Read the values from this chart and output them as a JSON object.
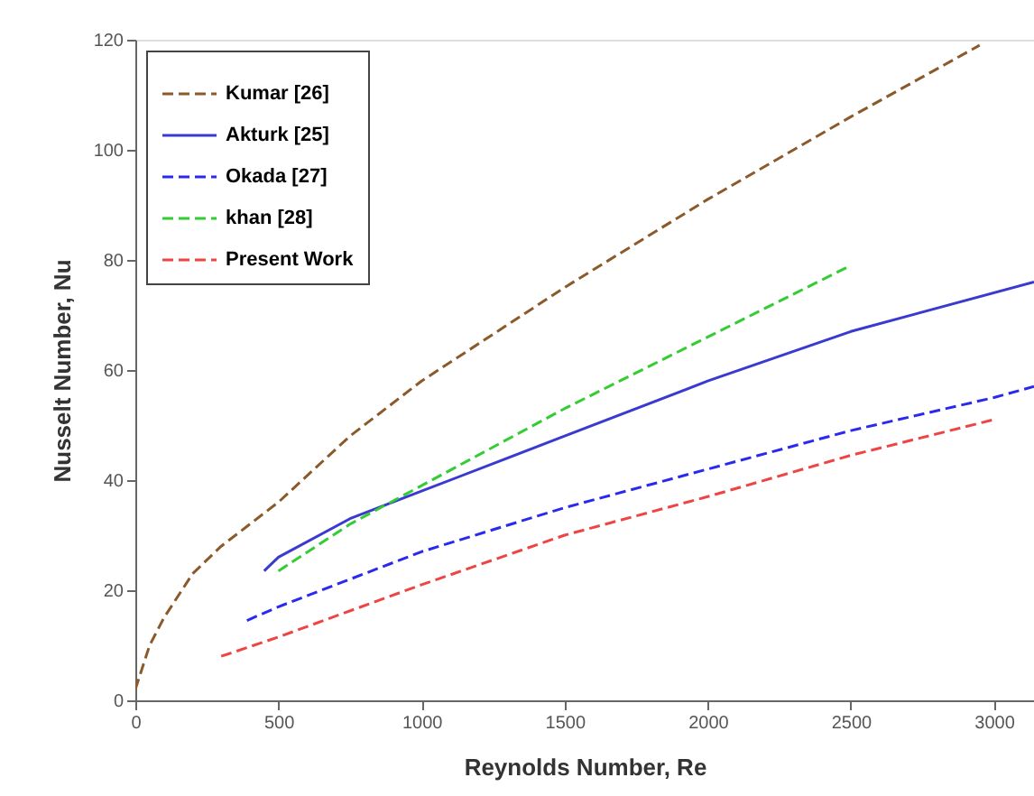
{
  "chart_data": {
    "type": "line",
    "xlabel": "Reynolds Number,  Re",
    "ylabel": "Nusselt Number,  Nu",
    "xlim": [
      0,
      3140
    ],
    "ylim": [
      0,
      120
    ],
    "xticks": [
      0,
      500,
      1000,
      1500,
      2000,
      2500,
      3000
    ],
    "yticks": [
      0,
      20,
      40,
      60,
      80,
      100,
      120
    ],
    "grid": false,
    "legend": "top left",
    "marker": "none",
    "series": [
      {
        "name": "Kumar  [26]",
        "color": "#8b5a2b",
        "line_style": "dashed",
        "x": [
          0,
          50,
          100,
          200,
          300,
          500,
          750,
          1000,
          1500,
          2000,
          2500,
          2950
        ],
        "values": [
          2,
          10,
          15,
          23,
          28,
          36,
          48,
          58,
          75,
          91,
          106,
          119
        ]
      },
      {
        "name": "Akturk  [25]",
        "color": "#3a3ad0",
        "line_style": "solid",
        "x": [
          450,
          500,
          750,
          1000,
          1500,
          2000,
          2500,
          3140
        ],
        "values": [
          23.5,
          26,
          33,
          38,
          48,
          58,
          67,
          76
        ]
      },
      {
        "name": "Okada  [27]",
        "color": "#2a2aee",
        "line_style": "dashed",
        "x": [
          390,
          500,
          1000,
          1500,
          2000,
          2500,
          3000,
          3140
        ],
        "values": [
          14.5,
          17,
          27,
          35,
          42,
          49,
          55,
          57
        ]
      },
      {
        "name": "khan      [28]",
        "color": "#33cc33",
        "line_style": "dashed",
        "x": [
          500,
          750,
          1000,
          1500,
          2000,
          2500
        ],
        "values": [
          23.5,
          32,
          39,
          53,
          66,
          79
        ]
      },
      {
        "name": "Present Work",
        "color": "#ee4444",
        "line_style": "dashed",
        "x": [
          300,
          500,
          1000,
          1500,
          2000,
          2500,
          3000
        ],
        "values": [
          8,
          11.5,
          21,
          30,
          37,
          44.5,
          51
        ]
      }
    ]
  }
}
